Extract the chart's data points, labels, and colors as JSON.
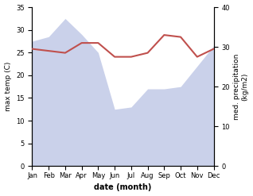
{
  "months": [
    "Jan",
    "Feb",
    "Mar",
    "Apr",
    "May",
    "Jun",
    "Jul",
    "Aug",
    "Sep",
    "Oct",
    "Nov",
    "Dec"
  ],
  "month_indices": [
    0,
    1,
    2,
    3,
    4,
    5,
    6,
    7,
    8,
    9,
    10,
    11
  ],
  "temperature": [
    27.5,
    28.5,
    32.5,
    29.0,
    25.0,
    12.5,
    13.0,
    17.0,
    17.0,
    17.5,
    22.0,
    26.5
  ],
  "precipitation": [
    29.5,
    29.0,
    28.5,
    31.0,
    31.0,
    27.5,
    27.5,
    28.5,
    33.0,
    32.5,
    27.5,
    29.5
  ],
  "temp_color": "#c0504d",
  "precip_fill_color": "#c5cce8",
  "precip_fill_alpha": 0.9,
  "temp_ylim": [
    0,
    35
  ],
  "temp_yticks": [
    0,
    5,
    10,
    15,
    20,
    25,
    30,
    35
  ],
  "precip_ylim": [
    0,
    40
  ],
  "precip_yticks": [
    0,
    10,
    20,
    30,
    40
  ],
  "xlabel": "date (month)",
  "ylabel_left": "max temp (C)",
  "ylabel_right": "med. precipitation\n(kg/m2)",
  "figsize": [
    3.18,
    2.47
  ],
  "dpi": 100
}
